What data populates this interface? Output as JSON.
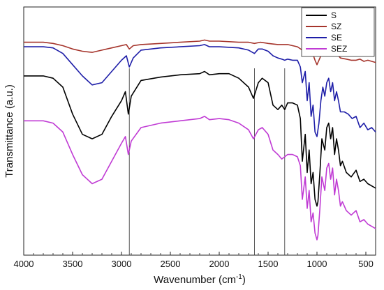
{
  "chart_data": {
    "type": "line",
    "title": "",
    "xlabel": "Wavenumber (cm",
    "xlabel_sup": "-1",
    "xlabel_close": ")",
    "ylabel": "Transmittance (a.u.)",
    "xlim": [
      4000,
      400
    ],
    "ylim": [
      0,
      100
    ],
    "x_reversed": true,
    "y_ticks_shown": false,
    "x_ticks": [
      4000,
      3500,
      3000,
      2500,
      2000,
      1500,
      1000,
      500
    ],
    "reference_lines": [
      2920,
      1640,
      1330
    ],
    "legend": {
      "position": "top-right"
    },
    "series": [
      {
        "name": "S",
        "color": "#000000",
        "points": [
          [
            4000,
            73
          ],
          [
            3800,
            73
          ],
          [
            3700,
            72
          ],
          [
            3600,
            68
          ],
          [
            3500,
            56
          ],
          [
            3400,
            47
          ],
          [
            3300,
            45
          ],
          [
            3200,
            47
          ],
          [
            3100,
            55
          ],
          [
            3000,
            62
          ],
          [
            2960,
            66
          ],
          [
            2930,
            56
          ],
          [
            2900,
            64
          ],
          [
            2800,
            71
          ],
          [
            2600,
            72.5
          ],
          [
            2400,
            73.5
          ],
          [
            2200,
            74
          ],
          [
            2150,
            75
          ],
          [
            2100,
            73.5
          ],
          [
            2000,
            74
          ],
          [
            1900,
            74
          ],
          [
            1800,
            72
          ],
          [
            1700,
            68
          ],
          [
            1650,
            63
          ],
          [
            1600,
            70
          ],
          [
            1560,
            72
          ],
          [
            1500,
            70
          ],
          [
            1450,
            60
          ],
          [
            1400,
            58
          ],
          [
            1360,
            60
          ],
          [
            1330,
            58
          ],
          [
            1300,
            61
          ],
          [
            1250,
            61
          ],
          [
            1200,
            60
          ],
          [
            1170,
            54
          ],
          [
            1150,
            35
          ],
          [
            1120,
            47
          ],
          [
            1100,
            30
          ],
          [
            1080,
            40
          ],
          [
            1060,
            25
          ],
          [
            1040,
            30
          ],
          [
            1020,
            18
          ],
          [
            1000,
            15
          ],
          [
            990,
            17
          ],
          [
            970,
            30
          ],
          [
            950,
            45
          ],
          [
            920,
            40
          ],
          [
            900,
            50
          ],
          [
            880,
            52
          ],
          [
            860,
            45
          ],
          [
            840,
            50
          ],
          [
            820,
            38
          ],
          [
            800,
            45
          ],
          [
            780,
            40
          ],
          [
            760,
            33
          ],
          [
            740,
            35
          ],
          [
            700,
            30
          ],
          [
            650,
            28
          ],
          [
            600,
            31
          ],
          [
            560,
            26
          ],
          [
            520,
            27
          ],
          [
            480,
            25
          ],
          [
            440,
            24
          ],
          [
            400,
            23
          ]
        ]
      },
      {
        "name": "SZ",
        "color": "#a5342b",
        "points": [
          [
            4000,
            88
          ],
          [
            3800,
            88
          ],
          [
            3700,
            87.5
          ],
          [
            3600,
            86.5
          ],
          [
            3500,
            85
          ],
          [
            3400,
            84
          ],
          [
            3300,
            83.5
          ],
          [
            3200,
            84.5
          ],
          [
            3100,
            85.5
          ],
          [
            3000,
            86.5
          ],
          [
            2950,
            87
          ],
          [
            2920,
            85
          ],
          [
            2880,
            86.5
          ],
          [
            2800,
            87
          ],
          [
            2600,
            87.5
          ],
          [
            2400,
            88
          ],
          [
            2200,
            88.5
          ],
          [
            2150,
            89
          ],
          [
            2100,
            88.5
          ],
          [
            2000,
            88.5
          ],
          [
            1800,
            88
          ],
          [
            1700,
            88
          ],
          [
            1640,
            87.5
          ],
          [
            1580,
            88
          ],
          [
            1500,
            87.5
          ],
          [
            1400,
            87
          ],
          [
            1300,
            87
          ],
          [
            1250,
            86.5
          ],
          [
            1200,
            86
          ],
          [
            1150,
            84.5
          ],
          [
            1120,
            86
          ],
          [
            1100,
            83.5
          ],
          [
            1080,
            85
          ],
          [
            1060,
            82
          ],
          [
            1040,
            82.5
          ],
          [
            1020,
            80
          ],
          [
            1000,
            78
          ],
          [
            980,
            80
          ],
          [
            960,
            82
          ],
          [
            940,
            84
          ],
          [
            920,
            83
          ],
          [
            900,
            85
          ],
          [
            880,
            84
          ],
          [
            860,
            82.5
          ],
          [
            840,
            83
          ],
          [
            820,
            82
          ],
          [
            800,
            83
          ],
          [
            760,
            81
          ],
          [
            700,
            80.5
          ],
          [
            650,
            80
          ],
          [
            600,
            80
          ],
          [
            560,
            80.5
          ],
          [
            520,
            79.5
          ],
          [
            480,
            80
          ],
          [
            440,
            79.5
          ],
          [
            400,
            79
          ]
        ]
      },
      {
        "name": "SE",
        "color": "#1e1ea8",
        "points": [
          [
            4000,
            86
          ],
          [
            3800,
            86
          ],
          [
            3700,
            85.5
          ],
          [
            3600,
            83
          ],
          [
            3500,
            78
          ],
          [
            3400,
            73
          ],
          [
            3300,
            69
          ],
          [
            3200,
            70
          ],
          [
            3100,
            75
          ],
          [
            3000,
            80
          ],
          [
            2950,
            82
          ],
          [
            2920,
            77
          ],
          [
            2880,
            81
          ],
          [
            2800,
            84.5
          ],
          [
            2600,
            85.5
          ],
          [
            2400,
            86
          ],
          [
            2200,
            86.5
          ],
          [
            2150,
            87
          ],
          [
            2100,
            86
          ],
          [
            2000,
            86
          ],
          [
            1800,
            85.5
          ],
          [
            1700,
            84.5
          ],
          [
            1640,
            83
          ],
          [
            1600,
            85
          ],
          [
            1560,
            85
          ],
          [
            1500,
            84
          ],
          [
            1450,
            82
          ],
          [
            1400,
            81
          ],
          [
            1360,
            80.5
          ],
          [
            1330,
            80
          ],
          [
            1300,
            80.5
          ],
          [
            1250,
            80
          ],
          [
            1200,
            80
          ],
          [
            1170,
            77
          ],
          [
            1150,
            70
          ],
          [
            1120,
            75
          ],
          [
            1100,
            62
          ],
          [
            1080,
            70
          ],
          [
            1060,
            55
          ],
          [
            1040,
            60
          ],
          [
            1020,
            48
          ],
          [
            1000,
            46
          ],
          [
            980,
            52
          ],
          [
            960,
            62
          ],
          [
            940,
            68
          ],
          [
            920,
            64
          ],
          [
            900,
            70
          ],
          [
            880,
            72
          ],
          [
            860,
            66
          ],
          [
            840,
            70
          ],
          [
            820,
            62
          ],
          [
            800,
            66
          ],
          [
            780,
            62
          ],
          [
            760,
            57
          ],
          [
            720,
            57
          ],
          [
            680,
            56
          ],
          [
            640,
            54
          ],
          [
            600,
            55
          ],
          [
            560,
            50
          ],
          [
            520,
            52
          ],
          [
            480,
            49
          ],
          [
            440,
            50
          ],
          [
            400,
            48
          ]
        ]
      },
      {
        "name": "SEZ",
        "color": "#c03bd4",
        "points": [
          [
            4000,
            53
          ],
          [
            3800,
            53
          ],
          [
            3700,
            52
          ],
          [
            3600,
            48
          ],
          [
            3500,
            38
          ],
          [
            3400,
            29
          ],
          [
            3300,
            25
          ],
          [
            3200,
            27
          ],
          [
            3100,
            35
          ],
          [
            3000,
            43
          ],
          [
            2960,
            46
          ],
          [
            2930,
            38
          ],
          [
            2900,
            44
          ],
          [
            2800,
            50
          ],
          [
            2600,
            52
          ],
          [
            2400,
            53
          ],
          [
            2200,
            54
          ],
          [
            2150,
            55
          ],
          [
            2100,
            53.5
          ],
          [
            2000,
            54
          ],
          [
            1900,
            53.5
          ],
          [
            1800,
            52
          ],
          [
            1700,
            49
          ],
          [
            1650,
            45
          ],
          [
            1600,
            49
          ],
          [
            1560,
            50
          ],
          [
            1500,
            47
          ],
          [
            1450,
            40
          ],
          [
            1400,
            38
          ],
          [
            1360,
            36
          ],
          [
            1330,
            37
          ],
          [
            1300,
            38
          ],
          [
            1250,
            38
          ],
          [
            1200,
            37
          ],
          [
            1170,
            33
          ],
          [
            1150,
            18
          ],
          [
            1120,
            28
          ],
          [
            1100,
            14
          ],
          [
            1080,
            22
          ],
          [
            1060,
            8
          ],
          [
            1040,
            12
          ],
          [
            1020,
            3
          ],
          [
            1000,
            0
          ],
          [
            990,
            2
          ],
          [
            970,
            14
          ],
          [
            950,
            28
          ],
          [
            920,
            22
          ],
          [
            900,
            32
          ],
          [
            880,
            34
          ],
          [
            860,
            27
          ],
          [
            840,
            32
          ],
          [
            820,
            20
          ],
          [
            800,
            27
          ],
          [
            780,
            22
          ],
          [
            760,
            15
          ],
          [
            740,
            17
          ],
          [
            700,
            13
          ],
          [
            650,
            11
          ],
          [
            600,
            13
          ],
          [
            560,
            8
          ],
          [
            520,
            9
          ],
          [
            480,
            7
          ],
          [
            440,
            6
          ],
          [
            400,
            5
          ]
        ]
      }
    ]
  }
}
